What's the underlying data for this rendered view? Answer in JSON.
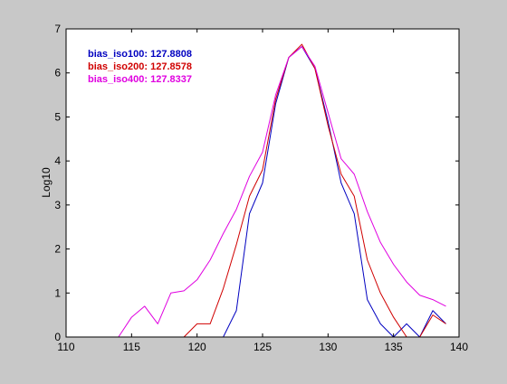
{
  "chart_data": {
    "type": "line",
    "title": "",
    "xlabel": "",
    "ylabel": "Log10",
    "xlim": [
      110,
      140
    ],
    "ylim": [
      0,
      7
    ],
    "xticks": [
      110,
      115,
      120,
      125,
      130,
      135,
      140
    ],
    "yticks": [
      0,
      1,
      2,
      3,
      4,
      5,
      6,
      7
    ],
    "xtick_labels": [
      "110",
      "115",
      "120",
      "125",
      "130",
      "135",
      "140"
    ],
    "ytick_labels": [
      "0",
      "1",
      "2",
      "3",
      "4",
      "5",
      "6",
      "7"
    ],
    "grid": false,
    "legend_position": "top-left",
    "legend": [
      {
        "series": "bias_iso100",
        "text": "bias_iso100: 127.8808",
        "color": "#0000c0"
      },
      {
        "series": "bias_iso200",
        "text": "bias_iso200: 127.8578",
        "color": "#d00000"
      },
      {
        "series": "bias_iso400",
        "text": "bias_iso400: 127.8337",
        "color": "#e000e0"
      }
    ],
    "series": [
      {
        "name": "bias_iso100",
        "color": "#0000c0",
        "x": [
          121,
          122,
          123,
          124,
          125,
          126,
          127,
          128,
          129,
          130,
          131,
          132,
          133,
          134,
          135,
          136,
          137,
          138,
          139
        ],
        "y": [
          0,
          0,
          0.6,
          2.8,
          3.5,
          5.3,
          6.35,
          6.6,
          6.1,
          4.9,
          3.5,
          2.8,
          0.85,
          0.3,
          0,
          0.3,
          0,
          0.6,
          0.3
        ]
      },
      {
        "name": "bias_iso200",
        "color": "#d00000",
        "x": [
          119,
          120,
          121,
          122,
          123,
          124,
          125,
          126,
          127,
          128,
          129,
          130,
          131,
          132,
          133,
          134,
          135,
          136,
          137,
          138,
          139
        ],
        "y": [
          0,
          0.3,
          0.3,
          1.1,
          2.1,
          3.2,
          3.8,
          5.4,
          6.35,
          6.65,
          6.1,
          4.8,
          3.7,
          3.2,
          1.75,
          1.0,
          0.45,
          0,
          0,
          0.5,
          0.3
        ]
      },
      {
        "name": "bias_iso400",
        "color": "#e000e0",
        "x": [
          114,
          115,
          116,
          117,
          118,
          119,
          120,
          121,
          122,
          123,
          124,
          125,
          126,
          127,
          128,
          129,
          130,
          131,
          132,
          133,
          134,
          135,
          136,
          137,
          138,
          139
        ],
        "y": [
          0,
          0.45,
          0.7,
          0.3,
          1.0,
          1.05,
          1.3,
          1.75,
          2.35,
          2.9,
          3.65,
          4.2,
          5.5,
          6.35,
          6.6,
          6.15,
          5.1,
          4.05,
          3.7,
          2.85,
          2.15,
          1.65,
          1.25,
          0.95,
          0.85,
          0.7
        ]
      }
    ]
  }
}
